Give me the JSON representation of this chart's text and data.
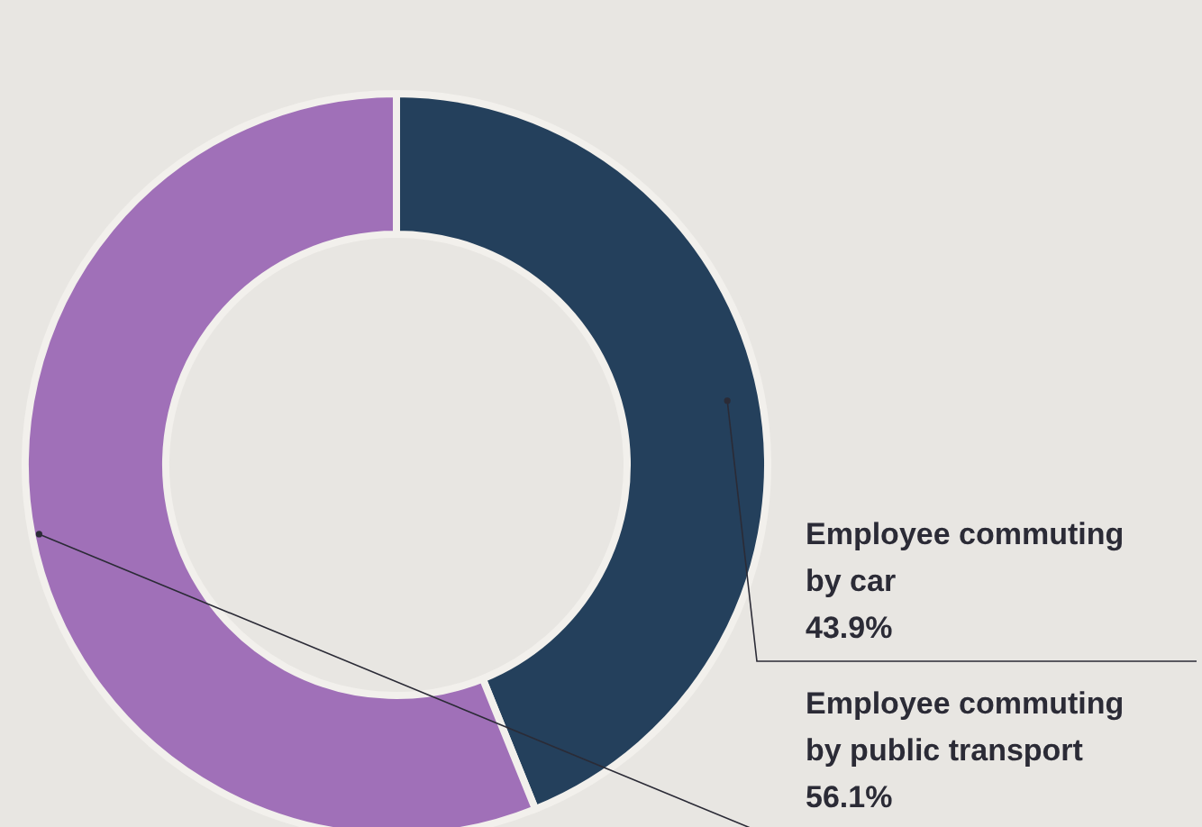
{
  "chart_data": {
    "type": "donut",
    "categories": [
      "Employee commuting by car",
      "Employee commuting by public transport"
    ],
    "values": [
      43.9,
      56.1
    ],
    "colors": [
      "#24405c",
      "#a070b8"
    ],
    "value_labels": [
      "43.9%",
      "56.1%"
    ]
  }
}
